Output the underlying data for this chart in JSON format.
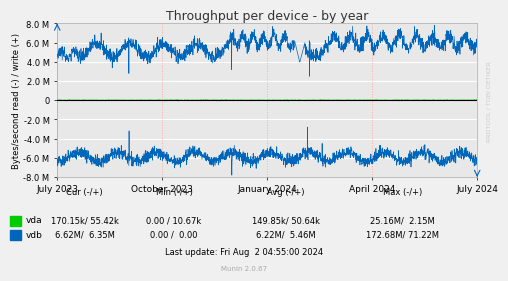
{
  "title": "Throughput per device - by year",
  "ylabel": "Bytes/second read (-) / write (+)",
  "xlabel_ticks": [
    "July 2023",
    "October 2023",
    "January 2024",
    "April 2024",
    "July 2024"
  ],
  "ylim": [
    -8000000,
    8000000
  ],
  "ytick_vals": [
    -8000000,
    -6000000,
    -4000000,
    -2000000,
    0,
    2000000,
    4000000,
    6000000,
    8000000
  ],
  "ytick_labels": [
    "-8.0 M",
    "-6.0 M",
    "-4.0 M",
    "-2.0 M",
    "0",
    "2.0 M",
    "4.0 M",
    "6.0 M",
    "8.0 M"
  ],
  "fig_bg_color": "#f0f0f0",
  "plot_bg_color": "#e8e8e8",
  "vda_color": "#00cc00",
  "vdb_color": "#0066bb",
  "zero_line_color": "#000000",
  "hgrid_color": "#ffffff",
  "vgrid_color": "#ffaaaa",
  "spine_color": "#aaaaaa",
  "rrdtool_label": "RRDTOOL / TOBI OETIKER",
  "footer_header": "          Cur (-/+)         Min (-/+)         Avg (-/+)         Max (-/+)",
  "footer_vda_label": "vda",
  "footer_vda_data": "170.15k/ 55.42k      0.00 / 10.67k   149.85k/ 50.64k    25.16M/  2.15M",
  "footer_vdb_label": "vdb",
  "footer_vdb_data": "  6.62M/  6.35M      0.00 /  0.00      6.22M/  5.46M   172.68M/ 71.22M",
  "footer_last": "Last update: Fri Aug  2 04:55:00 2024",
  "munin_version": "Munin 2.0.67",
  "seed": 42
}
